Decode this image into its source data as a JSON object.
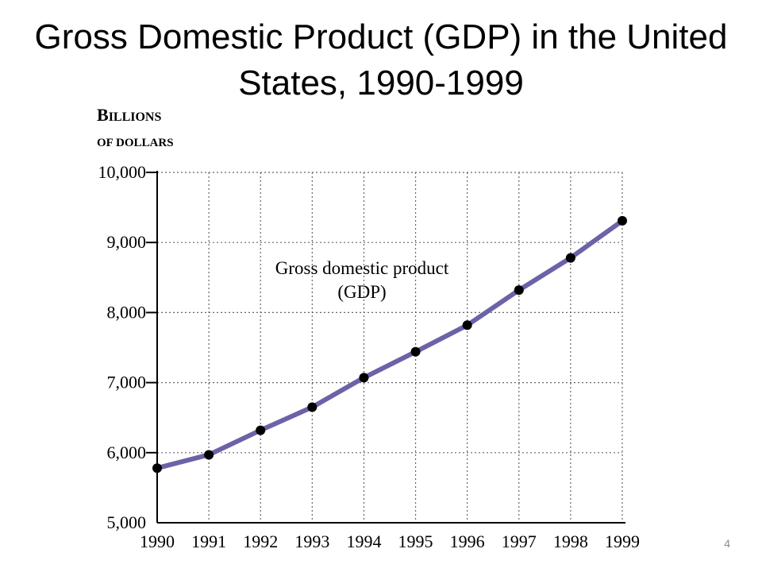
{
  "slide": {
    "title": "Gross Domestic Product (GDP) in the United States, 1990-1999",
    "page_number": "4"
  },
  "chart_data": {
    "type": "line",
    "title": "",
    "xlabel": "",
    "ylabel_line1": "Billions",
    "ylabel_line2": "of dollars",
    "x": [
      1990,
      1991,
      1992,
      1993,
      1994,
      1995,
      1996,
      1997,
      1998,
      1999
    ],
    "x_tick_labels": [
      "1990",
      "1991",
      "1992",
      "1993",
      "1994",
      "1995",
      "1996",
      "1997",
      "1998",
      "1999"
    ],
    "y_ticks": [
      5000,
      6000,
      7000,
      8000,
      9000,
      10000
    ],
    "y_tick_labels": [
      "5,000",
      "6,000",
      "7,000",
      "8,000",
      "9,000",
      "10,000"
    ],
    "ylim": [
      5000,
      10000
    ],
    "grid": true,
    "series": [
      {
        "name": "Gross domestic product (GDP)",
        "values": [
          5780,
          5970,
          6320,
          6650,
          7070,
          7440,
          7820,
          8320,
          8780,
          9310
        ],
        "line_color": "#6b63a8",
        "marker_color": "#000000"
      }
    ],
    "annotation_line1": "Gross domestic product",
    "annotation_line2": "(GDP)"
  }
}
